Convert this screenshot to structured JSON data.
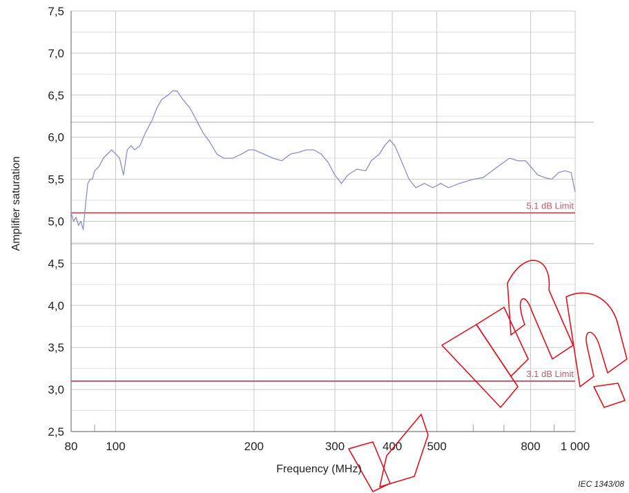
{
  "chart_data": {
    "type": "line",
    "title": "",
    "xlabel": "Frequency      (MHz)",
    "ylabel": "Amplifier saturation",
    "x_scale": "log",
    "xlim": [
      80,
      1000
    ],
    "ylim": [
      2.5,
      7.5
    ],
    "grid": true,
    "x_tick_labels": [
      {
        "value": 80,
        "label": "80"
      },
      {
        "value": 100,
        "label": "100"
      },
      {
        "value": 200,
        "label": "200"
      },
      {
        "value": 300,
        "label": "300"
      },
      {
        "value": 400,
        "label": "400"
      },
      {
        "value": 500,
        "label": "500"
      },
      {
        "value": 800,
        "label": "800"
      },
      {
        "value": 1000,
        "label": "1 000"
      }
    ],
    "x_minor_ticks": [
      90,
      600,
      700,
      900
    ],
    "y_tick_labels": [
      {
        "value": 2.5,
        "label": "2,5"
      },
      {
        "value": 3.0,
        "label": "3,0"
      },
      {
        "value": 3.5,
        "label": "3,5"
      },
      {
        "value": 4.0,
        "label": "4,0"
      },
      {
        "value": 4.5,
        "label": "4,5"
      },
      {
        "value": 5.0,
        "label": "5,0"
      },
      {
        "value": 5.5,
        "label": "5,5"
      },
      {
        "value": 6.0,
        "label": "6,0"
      },
      {
        "value": 6.5,
        "label": "6,5"
      },
      {
        "value": 7.0,
        "label": "7,0"
      },
      {
        "value": 7.5,
        "label": "7,5"
      }
    ],
    "series": [
      {
        "color": "#8a8fc4",
        "points": [
          [
            80,
            5.1
          ],
          [
            81,
            5.0
          ],
          [
            82,
            5.05
          ],
          [
            83,
            4.95
          ],
          [
            84,
            5.0
          ],
          [
            85,
            4.9
          ],
          [
            86,
            5.2
          ],
          [
            87,
            5.45
          ],
          [
            88,
            5.5
          ],
          [
            89,
            5.5
          ],
          [
            90,
            5.6
          ],
          [
            92,
            5.65
          ],
          [
            94,
            5.75
          ],
          [
            96,
            5.8
          ],
          [
            98,
            5.85
          ],
          [
            100,
            5.8
          ],
          [
            102,
            5.75
          ],
          [
            104,
            5.55
          ],
          [
            106,
            5.85
          ],
          [
            108,
            5.9
          ],
          [
            110,
            5.85
          ],
          [
            113,
            5.9
          ],
          [
            116,
            6.05
          ],
          [
            120,
            6.2
          ],
          [
            123,
            6.35
          ],
          [
            126,
            6.45
          ],
          [
            130,
            6.5
          ],
          [
            133,
            6.55
          ],
          [
            136,
            6.55
          ],
          [
            140,
            6.45
          ],
          [
            145,
            6.35
          ],
          [
            150,
            6.2
          ],
          [
            155,
            6.05
          ],
          [
            160,
            5.95
          ],
          [
            166,
            5.8
          ],
          [
            172,
            5.75
          ],
          [
            180,
            5.75
          ],
          [
            188,
            5.8
          ],
          [
            195,
            5.85
          ],
          [
            200,
            5.85
          ],
          [
            210,
            5.8
          ],
          [
            220,
            5.75
          ],
          [
            230,
            5.72
          ],
          [
            240,
            5.8
          ],
          [
            250,
            5.82
          ],
          [
            260,
            5.85
          ],
          [
            270,
            5.85
          ],
          [
            280,
            5.8
          ],
          [
            290,
            5.7
          ],
          [
            300,
            5.55
          ],
          [
            310,
            5.45
          ],
          [
            320,
            5.55
          ],
          [
            335,
            5.62
          ],
          [
            350,
            5.6
          ],
          [
            360,
            5.72
          ],
          [
            375,
            5.8
          ],
          [
            385,
            5.9
          ],
          [
            395,
            5.97
          ],
          [
            405,
            5.9
          ],
          [
            420,
            5.7
          ],
          [
            435,
            5.5
          ],
          [
            450,
            5.4
          ],
          [
            470,
            5.45
          ],
          [
            490,
            5.4
          ],
          [
            510,
            5.45
          ],
          [
            530,
            5.4
          ],
          [
            560,
            5.45
          ],
          [
            600,
            5.5
          ],
          [
            630,
            5.52
          ],
          [
            660,
            5.6
          ],
          [
            690,
            5.68
          ],
          [
            720,
            5.75
          ],
          [
            750,
            5.72
          ],
          [
            780,
            5.72
          ],
          [
            800,
            5.65
          ],
          [
            830,
            5.55
          ],
          [
            860,
            5.52
          ],
          [
            890,
            5.5
          ],
          [
            920,
            5.58
          ],
          [
            950,
            5.6
          ],
          [
            980,
            5.58
          ],
          [
            1000,
            5.35
          ]
        ]
      }
    ],
    "limits": [
      {
        "value": 5.1,
        "label": "5.1 dB Limit",
        "color": "#c9505e"
      },
      {
        "value": 3.1,
        "label": "3.1 dB Limit",
        "color": "#c9505e"
      }
    ],
    "watermark_text": "IEC   1343/08",
    "overlay_stamp_color": "#e0101e"
  }
}
